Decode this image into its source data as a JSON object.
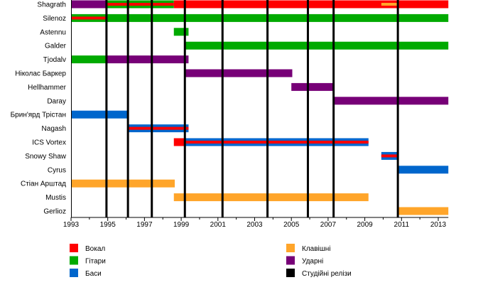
{
  "chart_data": {
    "type": "timeline",
    "title": "",
    "xlim": [
      1993,
      2013.55
    ],
    "x_ticks": [
      "1993",
      "1995",
      "1997",
      "1999",
      "2001",
      "2003",
      "2005",
      "2007",
      "2009",
      "2011",
      "2013"
    ],
    "colors": {
      "vocals": "#ff0000",
      "guitars": "#00aa00",
      "bass": "#0066cc",
      "keyboards": "#ffa52a",
      "drums": "#770077",
      "releases": "#000000"
    },
    "legend": [
      {
        "key": "vocals",
        "label": "Вокал"
      },
      {
        "key": "guitars",
        "label": "Гітари"
      },
      {
        "key": "bass",
        "label": "Баси"
      },
      {
        "key": "keyboards",
        "label": "Клавішні"
      },
      {
        "key": "drums",
        "label": "Ударні"
      },
      {
        "key": "releases",
        "label": "Студійні релізи"
      }
    ],
    "releases": [
      1994.93,
      1996.1,
      1997.4,
      1999.2,
      2001.25,
      2003.7,
      2005.9,
      2007.3,
      2010.8
    ],
    "members": [
      {
        "name": "Shagrath",
        "bars": [
          {
            "role": "drums",
            "from": 1993,
            "to": 1994.93
          },
          {
            "role": "guitars",
            "from": 1994.93,
            "to": 1998.6
          },
          {
            "role": "vocals",
            "from": 1998.6,
            "to": 2013.55
          }
        ],
        "stripes": [
          {
            "role": "vocals",
            "from": 1994.93,
            "to": 1998.6
          },
          {
            "role": "keyboards",
            "from": 2009.9,
            "to": 2010.75
          }
        ]
      },
      {
        "name": "Silenoz",
        "bars": [
          {
            "role": "guitars",
            "from": 1993,
            "to": 2013.55
          }
        ],
        "stripes": [
          {
            "role": "vocals",
            "from": 1993,
            "to": 1994.93
          }
        ]
      },
      {
        "name": "Astennu",
        "bars": [
          {
            "role": "guitars",
            "from": 1998.6,
            "to": 1999.4
          }
        ],
        "stripes": []
      },
      {
        "name": "Galder",
        "bars": [
          {
            "role": "guitars",
            "from": 1999.2,
            "to": 2013.55
          }
        ],
        "stripes": []
      },
      {
        "name": "Tjodalv",
        "bars": [
          {
            "role": "guitars",
            "from": 1993,
            "to": 1994.93
          },
          {
            "role": "drums",
            "from": 1994.93,
            "to": 1999.4
          }
        ],
        "stripes": []
      },
      {
        "name": "Ніколас Баркер",
        "bars": [
          {
            "role": "drums",
            "from": 1999.2,
            "to": 2005.05
          }
        ],
        "stripes": []
      },
      {
        "name": "Hellhammer",
        "bars": [
          {
            "role": "drums",
            "from": 2005.0,
            "to": 2007.35
          }
        ],
        "stripes": []
      },
      {
        "name": "Daray",
        "bars": [
          {
            "role": "drums",
            "from": 2007.3,
            "to": 2013.55
          }
        ],
        "stripes": []
      },
      {
        "name": "Брин'ярд Трістан",
        "bars": [
          {
            "role": "bass",
            "from": 1993,
            "to": 1996.1
          }
        ],
        "stripes": []
      },
      {
        "name": "Nagash",
        "bars": [
          {
            "role": "bass",
            "from": 1996.1,
            "to": 1999.4
          }
        ],
        "stripes": [
          {
            "role": "vocals",
            "from": 1996.1,
            "to": 1999.4
          }
        ]
      },
      {
        "name": "ICS Vortex",
        "bars": [
          {
            "role": "vocals",
            "from": 1998.6,
            "to": 1999.2
          },
          {
            "role": "bass",
            "from": 1999.2,
            "to": 2009.2
          }
        ],
        "stripes": [
          {
            "role": "vocals",
            "from": 1999.2,
            "to": 2009.2
          }
        ]
      },
      {
        "name": "Snowy Shaw",
        "bars": [
          {
            "role": "bass",
            "from": 2009.9,
            "to": 2010.8
          }
        ],
        "stripes": [
          {
            "role": "vocals",
            "from": 2009.9,
            "to": 2010.8
          }
        ]
      },
      {
        "name": "Cyrus",
        "bars": [
          {
            "role": "bass",
            "from": 2010.8,
            "to": 2013.55
          }
        ],
        "stripes": []
      },
      {
        "name": "Стіан Арштад",
        "bars": [
          {
            "role": "keyboards",
            "from": 1993,
            "to": 1998.65
          }
        ],
        "stripes": []
      },
      {
        "name": "Mustis",
        "bars": [
          {
            "role": "keyboards",
            "from": 1998.6,
            "to": 2009.2
          }
        ],
        "stripes": []
      },
      {
        "name": "Gerlioz",
        "bars": [
          {
            "role": "keyboards",
            "from": 2010.8,
            "to": 2013.55
          }
        ],
        "stripes": []
      }
    ]
  }
}
